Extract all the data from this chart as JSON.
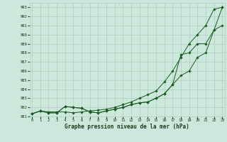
{
  "title": "Graphe pression niveau de la mer (hPa)",
  "bg_color": "#cce8dc",
  "grid_color": "#a8c8b8",
  "line_color": "#1a5c20",
  "ylim": [
    981,
    993.5
  ],
  "yticks": [
    981,
    982,
    983,
    984,
    985,
    986,
    987,
    988,
    989,
    990,
    991,
    992,
    993
  ],
  "xlim": [
    -0.3,
    23.3
  ],
  "xticks": [
    0,
    1,
    2,
    3,
    4,
    5,
    6,
    7,
    8,
    9,
    10,
    11,
    12,
    13,
    14,
    15,
    16,
    17,
    18,
    19,
    20,
    21,
    22,
    23
  ],
  "line1": [
    981.3,
    981.6,
    981.5,
    981.5,
    981.5,
    981.4,
    981.5,
    981.6,
    981.7,
    981.8,
    982.0,
    982.3,
    982.6,
    983.0,
    983.4,
    983.8,
    984.8,
    986.0,
    987.5,
    989.0,
    990.0,
    991.0,
    992.8,
    993.0
  ],
  "line2": [
    981.3,
    981.6,
    981.4,
    981.4,
    982.1,
    982.0,
    981.9,
    981.5,
    981.4,
    981.6,
    981.8,
    982.0,
    982.3,
    982.5,
    982.6,
    983.0,
    983.5,
    984.5,
    985.5,
    986.0,
    987.5,
    988.0,
    990.5,
    993.0
  ],
  "line3": [
    981.3,
    981.6,
    981.4,
    981.4,
    982.1,
    982.0,
    981.9,
    981.5,
    981.4,
    981.6,
    981.8,
    982.0,
    982.3,
    982.5,
    982.6,
    983.0,
    983.5,
    984.5,
    987.8,
    988.0,
    989.0,
    989.0,
    990.5,
    991.0
  ]
}
